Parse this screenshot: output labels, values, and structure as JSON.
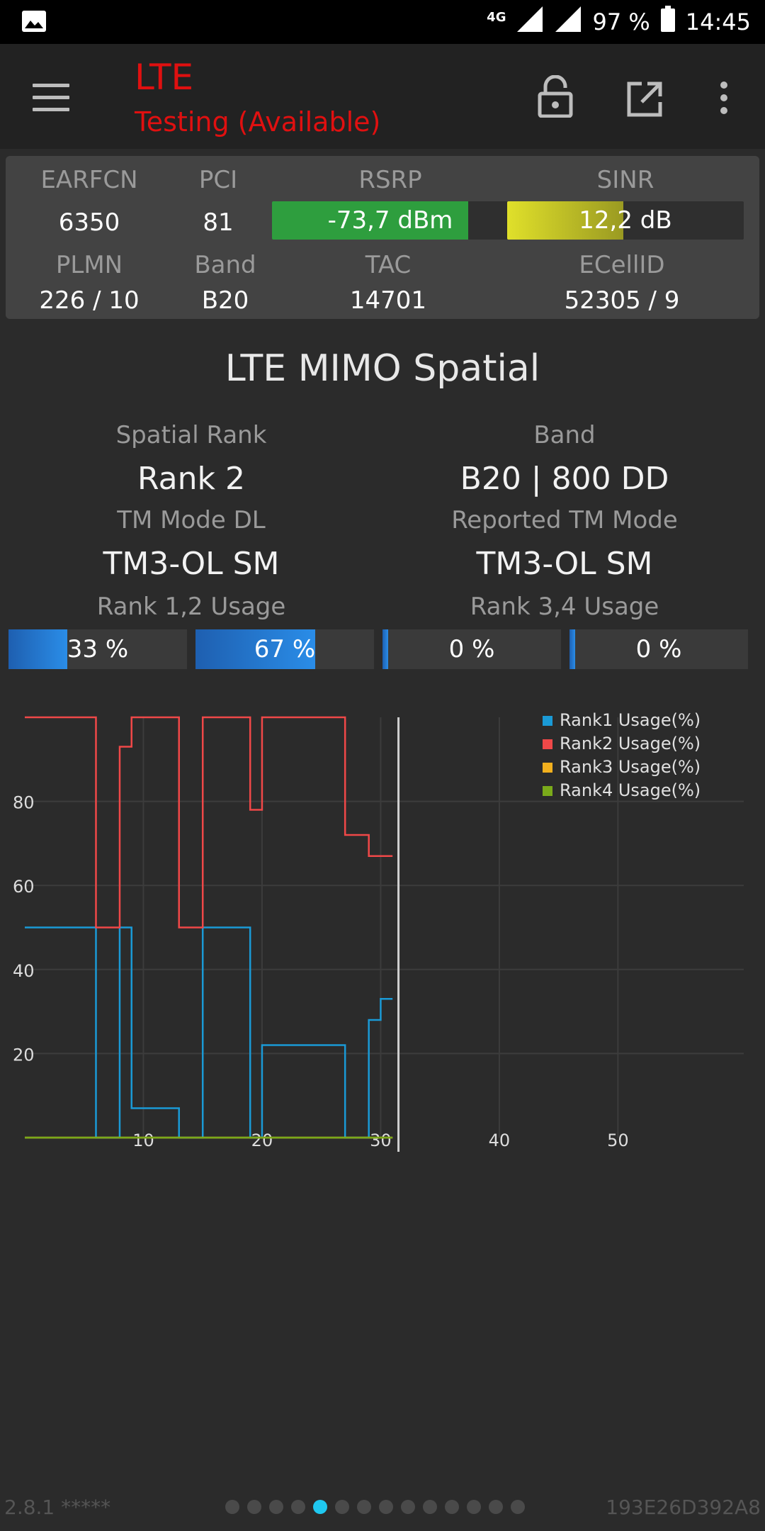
{
  "status_bar": {
    "network": "4G",
    "battery": "97 %",
    "time": "14:45"
  },
  "app_bar": {
    "title": "LTE",
    "subtitle": "Testing (Available)",
    "icons": [
      "menu-icon",
      "lock-open-icon",
      "open-in-new-icon",
      "more-vert-icon"
    ]
  },
  "info": {
    "earfcn_label": "EARFCN",
    "earfcn": "6350",
    "pci_label": "PCI",
    "pci": "81",
    "rsrp_label": "RSRP",
    "rsrp": "-73,7 dBm",
    "rsrp_level": 0.83,
    "sinr_label": "SINR",
    "sinr": "12,2 dB",
    "sinr_level": 0.49,
    "plmn_label": "PLMN",
    "plmn": "226 / 10",
    "band_label": "Band",
    "band": "B20",
    "tac_label": "TAC",
    "tac": "14701",
    "ecellid_label": "ECellID",
    "ecellid": "52305 / 9",
    "colors": {
      "rsrp": "#2e9e3e",
      "sinr": "#d9d92a"
    }
  },
  "mimo": {
    "title": "LTE MIMO Spatial",
    "spatial_rank_label": "Spatial Rank",
    "spatial_rank": "Rank 2",
    "band_label": "Band",
    "band": "B20 | 800 DD",
    "tm_mode_label": "TM Mode DL",
    "tm_mode": "TM3-OL SM",
    "reported_tm_label": "Reported TM Mode",
    "reported_tm": "TM3-OL SM",
    "rank12_label": "Rank 1,2 Usage",
    "rank34_label": "Rank 3,4 Usage",
    "usage": [
      {
        "text": "33 %",
        "value": 33
      },
      {
        "text": "67 %",
        "value": 67
      },
      {
        "text": "0 %",
        "value": 0
      },
      {
        "text": "0 %",
        "value": 0
      }
    ]
  },
  "chart_data": {
    "type": "line",
    "step": true,
    "xlim": [
      0,
      60
    ],
    "ylim": [
      0,
      100
    ],
    "x_ticks": [
      "10",
      "20",
      "30",
      "40",
      "50"
    ],
    "y_ticks": [
      "20",
      "40",
      "60",
      "80"
    ],
    "grid": true,
    "legend_position": "top-right",
    "cursor_x": 31.5,
    "series": [
      {
        "name": "Rank1 Usage(%)",
        "color": "#1a9ad6",
        "x": [
          0,
          6,
          8,
          9,
          13,
          15,
          19,
          20,
          27,
          29,
          30
        ],
        "y": [
          50,
          0,
          50,
          7,
          0,
          50,
          0,
          22,
          0,
          28,
          33
        ]
      },
      {
        "name": "Rank2 Usage(%)",
        "color": "#f04848",
        "x": [
          0,
          6,
          8,
          9,
          13,
          15,
          19,
          20,
          27,
          29,
          30
        ],
        "y": [
          100,
          50,
          93,
          100,
          50,
          100,
          78,
          100,
          72,
          67,
          67
        ]
      },
      {
        "name": "Rank3 Usage(%)",
        "color": "#f2b01e",
        "x": [
          0,
          30
        ],
        "y": [
          0,
          0
        ]
      },
      {
        "name": "Rank4 Usage(%)",
        "color": "#7aaa1a",
        "x": [
          0,
          30
        ],
        "y": [
          0,
          0
        ]
      }
    ]
  },
  "footer": {
    "version": "2.8.1 *****",
    "device_id": "193E26D392A8",
    "page_count": 14,
    "active_page": 5
  }
}
